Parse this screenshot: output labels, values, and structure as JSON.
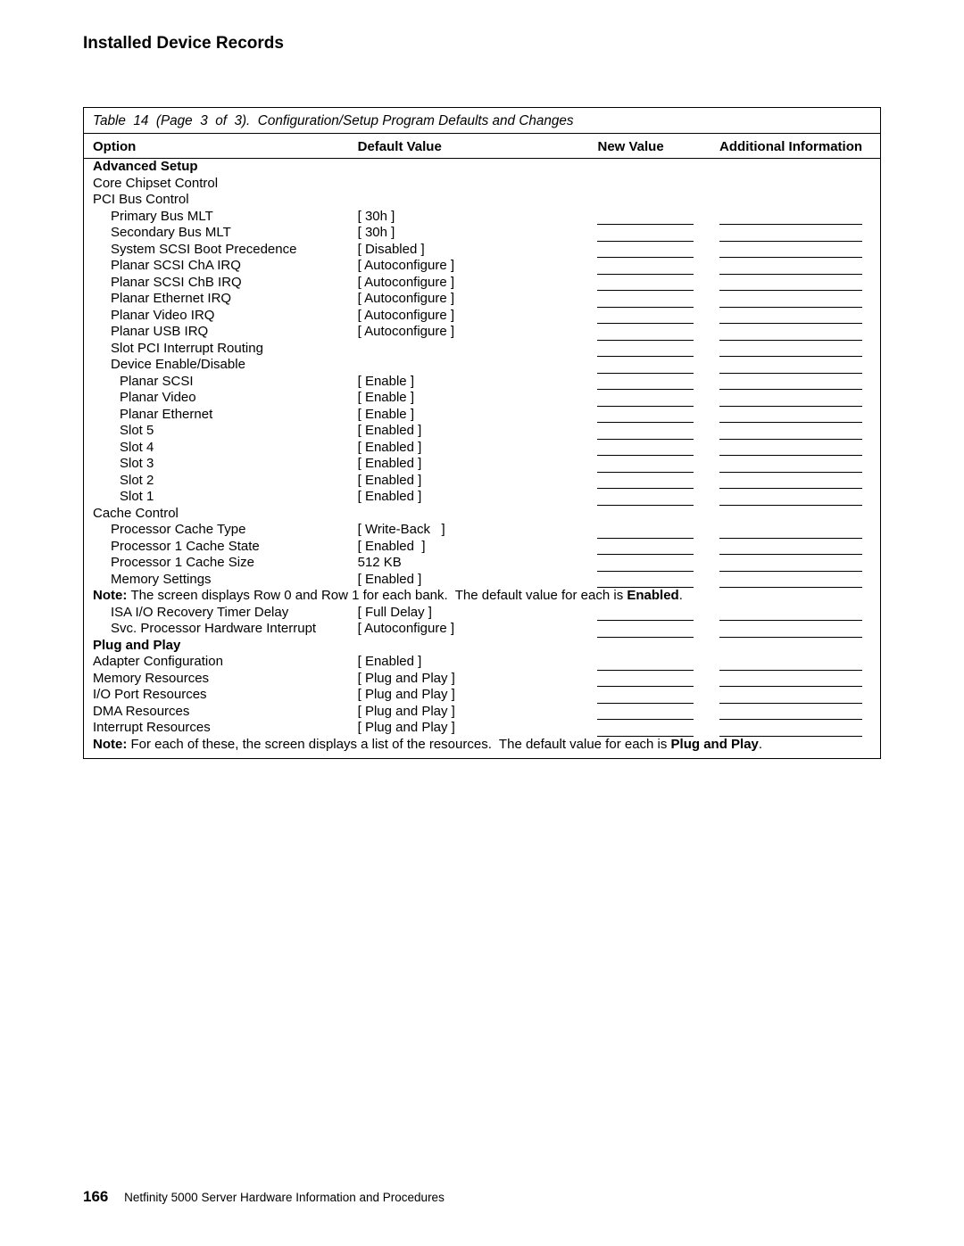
{
  "page_title": "Installed Device Records",
  "table_caption": "Table  14  (Page  3  of  3).  Configuration/Setup Program Defaults and Changes",
  "columns": {
    "option": "Option",
    "default_value": "Default Value",
    "new_value": "New Value",
    "additional_info": "Additional Information"
  },
  "rows": [
    {
      "type": "header",
      "indent": 0,
      "option": "Advanced Setup"
    },
    {
      "type": "label",
      "indent": 0,
      "option": "Core Chipset Control"
    },
    {
      "type": "label",
      "indent": 0,
      "option": "PCI Bus Control"
    },
    {
      "type": "value",
      "indent": 1,
      "option": "Primary Bus MLT",
      "default": "[ 30h ]"
    },
    {
      "type": "value",
      "indent": 1,
      "option": "Secondary Bus MLT",
      "default": "[ 30h ]"
    },
    {
      "type": "value",
      "indent": 1,
      "option": "System SCSI Boot Precedence",
      "default": "[ Disabled ]"
    },
    {
      "type": "value",
      "indent": 1,
      "option": "Planar SCSI ChA IRQ",
      "default": "[ Autoconfigure ]"
    },
    {
      "type": "value",
      "indent": 1,
      "option": "Planar SCSI ChB IRQ",
      "default": "[ Autoconfigure ]"
    },
    {
      "type": "value",
      "indent": 1,
      "option": "Planar Ethernet IRQ",
      "default": "[ Autoconfigure ]"
    },
    {
      "type": "value",
      "indent": 1,
      "option": "Planar Video IRQ",
      "default": "[ Autoconfigure ]"
    },
    {
      "type": "value",
      "indent": 1,
      "option": "Planar USB IRQ",
      "default": "[ Autoconfigure ]"
    },
    {
      "type": "blank",
      "indent": 1,
      "option": "Slot PCI Interrupt Routing"
    },
    {
      "type": "blank",
      "indent": 1,
      "option": "Device Enable/Disable"
    },
    {
      "type": "value",
      "indent": 2,
      "option": "Planar SCSI",
      "default": "[ Enable ]"
    },
    {
      "type": "value",
      "indent": 2,
      "option": "Planar Video",
      "default": "[ Enable ]"
    },
    {
      "type": "value",
      "indent": 2,
      "option": "Planar Ethernet",
      "default": "[ Enable ]"
    },
    {
      "type": "value",
      "indent": 2,
      "option": "Slot 5",
      "default": "[ Enabled ]"
    },
    {
      "type": "value",
      "indent": 2,
      "option": "Slot 4",
      "default": "[ Enabled ]"
    },
    {
      "type": "value",
      "indent": 2,
      "option": "Slot 3",
      "default": "[ Enabled ]"
    },
    {
      "type": "value",
      "indent": 2,
      "option": "Slot 2",
      "default": "[ Enabled ]"
    },
    {
      "type": "value",
      "indent": 2,
      "option": "Slot 1",
      "default": "[ Enabled ]"
    },
    {
      "type": "label",
      "indent": 0,
      "option": "Cache Control"
    },
    {
      "type": "value",
      "indent": 1,
      "option": "Processor Cache Type",
      "default": "[ Write-Back   ]"
    },
    {
      "type": "value",
      "indent": 1,
      "option": "Processor 1 Cache State",
      "default": "[ Enabled  ]"
    },
    {
      "type": "value",
      "indent": 1,
      "option": "Processor 1 Cache Size",
      "default": "512 KB"
    },
    {
      "type": "value",
      "indent": 1,
      "option": "Memory Settings",
      "default": "[ Enabled ]"
    },
    {
      "type": "note",
      "text_before": "The screen displays Row 0 and Row 1 for each bank.  The default value for each is ",
      "bold_word": "Enabled",
      "text_after": "."
    },
    {
      "type": "value",
      "indent": 1,
      "option": "ISA I/O Recovery Timer Delay",
      "default": "[ Full Delay ]"
    },
    {
      "type": "value",
      "indent": 1,
      "option": "Svc. Processor Hardware Interrupt",
      "default": "[ Autoconfigure ]"
    },
    {
      "type": "header",
      "indent": 0,
      "option": "Plug and Play"
    },
    {
      "type": "value",
      "indent": 0,
      "option": "Adapter Configuration",
      "default": "[ Enabled ]"
    },
    {
      "type": "value",
      "indent": 0,
      "option": "Memory Resources",
      "default": "[ Plug and Play ]"
    },
    {
      "type": "value",
      "indent": 0,
      "option": "I/O Port Resources",
      "default": "[ Plug and Play ]"
    },
    {
      "type": "value",
      "indent": 0,
      "option": "DMA Resources",
      "default": "[ Plug and Play ]"
    },
    {
      "type": "value",
      "indent": 0,
      "option": "Interrupt Resources",
      "default": "[ Plug and Play ]"
    },
    {
      "type": "note",
      "text_before": "For each of these, the screen displays a list of the resources.  The default value for each is ",
      "bold_word": "Plug and Play",
      "text_after": "."
    }
  ],
  "note_label": "Note:",
  "footer": {
    "page_number": "166",
    "book_title": "Netfinity 5000 Server Hardware Information and Procedures"
  }
}
